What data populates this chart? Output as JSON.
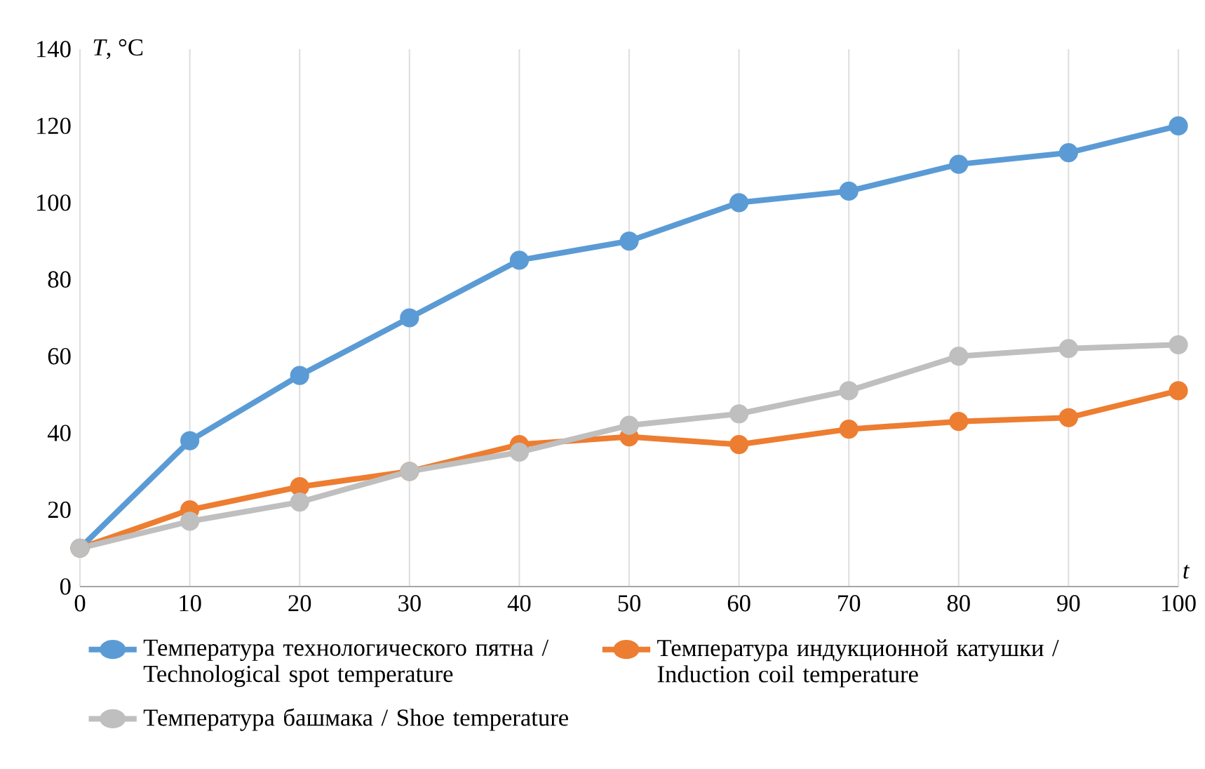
{
  "chart_data": {
    "type": "line",
    "xlabel": "t",
    "ylabel": "*T*, °C",
    "x": [
      0,
      10,
      20,
      30,
      40,
      50,
      60,
      70,
      80,
      90,
      100
    ],
    "xlim": [
      0,
      100
    ],
    "xticks": [
      0,
      10,
      20,
      30,
      40,
      50,
      60,
      70,
      80,
      90,
      100
    ],
    "ylim": [
      0,
      140
    ],
    "yticks": [
      0,
      20,
      40,
      60,
      80,
      100,
      120,
      140
    ],
    "grid": "x",
    "legend": "bottom",
    "marker": "circle",
    "line_style": "solid",
    "series": [
      {
        "name": "Температура технологического пятна / Technological spot temperature",
        "color": "#5b9bd5",
        "values": [
          10,
          38,
          55,
          70,
          85,
          90,
          100,
          103,
          110,
          113,
          120
        ]
      },
      {
        "name": "Температура индукционной катушки / Induction coil temperature",
        "color": "#ed7d31",
        "values": [
          10,
          20,
          26,
          30,
          37,
          39,
          37,
          41,
          43,
          44,
          51
        ]
      },
      {
        "name": "Температура башмака / Shoe temperature",
        "color": "#bfbfbf",
        "values": [
          10,
          17,
          22,
          30,
          35,
          42,
          45,
          51,
          60,
          62,
          63
        ]
      }
    ]
  }
}
